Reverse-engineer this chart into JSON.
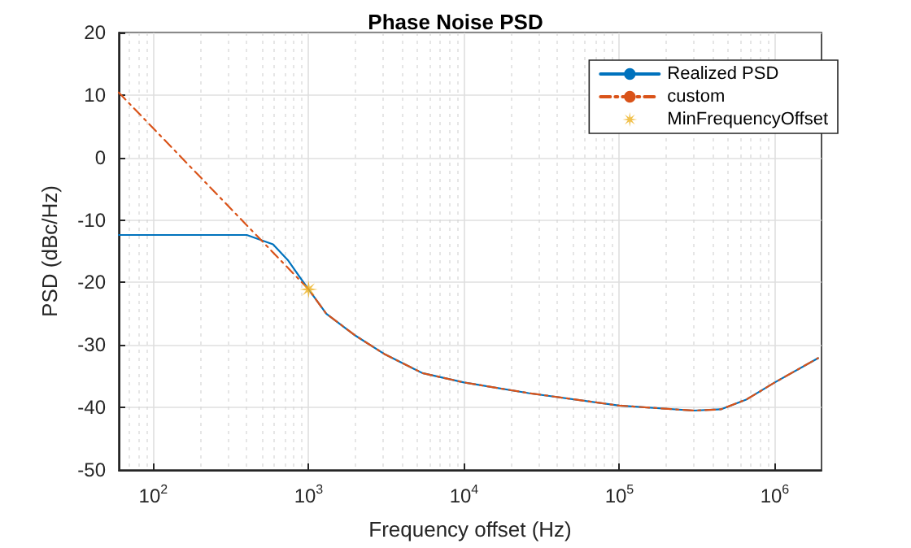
{
  "chart_data": {
    "type": "line",
    "title": "Phase Noise PSD",
    "xlabel": "Frequency offset (Hz)",
    "ylabel": "PSD (dBc/Hz)",
    "log": "x",
    "grid": true,
    "legend": "top right",
    "xlim": [
      60,
      2000000
    ],
    "ylim": [
      -50,
      20
    ],
    "xticks": [
      {
        "value": 100,
        "label": "10$^{2}$"
      },
      {
        "value": 1000,
        "label": "10$^{3}$"
      },
      {
        "value": 10000,
        "label": "10$^{4}$"
      },
      {
        "value": 100000,
        "label": "10$^{5}$"
      },
      {
        "value": 1000000,
        "label": "10$^{6}$"
      }
    ],
    "yticks": [
      -50,
      -40,
      -30,
      -20,
      -10,
      0,
      10,
      20
    ],
    "series": [
      {
        "name": "Realized PSD",
        "color": "#0072bd",
        "line_style": "solid",
        "marker": "none",
        "x": [
          60,
          400,
          590,
          740,
          910,
          1000,
          1300,
          2000,
          3100,
          5400,
          10000,
          26000,
          100000,
          300000,
          450000,
          660000,
          1000000,
          1900000
        ],
        "values": [
          -12.4,
          -12.4,
          -13.9,
          -16.5,
          -19.7,
          -21.1,
          -25,
          -28.5,
          -31.5,
          -34.5,
          -36,
          -37.7,
          -39.7,
          -40.5,
          -40.3,
          -38.7,
          -36,
          -32.1
        ]
      },
      {
        "name": "custom",
        "color": "#d95319",
        "line_style": "dashed",
        "marker": "none",
        "x": [
          60,
          1000,
          1300,
          2000,
          3100,
          5400,
          10000,
          26000,
          100000,
          300000,
          450000,
          660000,
          1000000,
          1900000
        ],
        "values": [
          10.4,
          -21.1,
          -25,
          -28.5,
          -31.5,
          -34.5,
          -36,
          -37.7,
          -39.7,
          -40.5,
          -40.3,
          -38.7,
          -36,
          -32.1
        ]
      },
      {
        "name": "MinFrequencyOffset",
        "type": "scatter",
        "color": "#edb120",
        "marker": "star",
        "x": [
          1000
        ],
        "values": [
          -21.1
        ]
      }
    ]
  }
}
